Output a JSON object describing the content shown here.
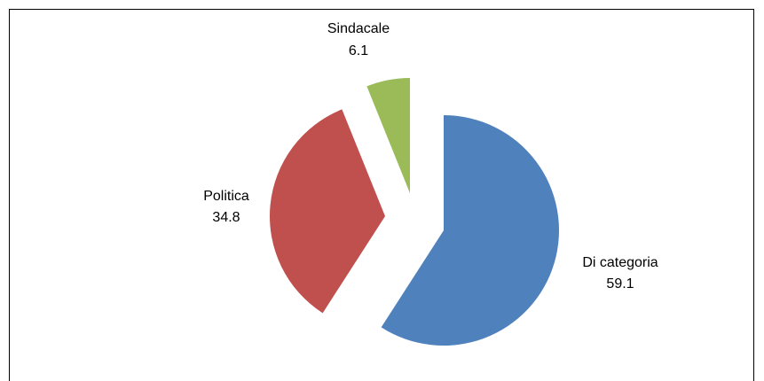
{
  "chart_data": {
    "type": "pie",
    "title": "",
    "slices": [
      {
        "label": "Di categoria",
        "value": 59.1,
        "value_label": "59.1",
        "color": "#4F81BD"
      },
      {
        "label": "Politica",
        "value": 34.8,
        "value_label": "34.8",
        "color": "#C0504D"
      },
      {
        "label": "Sindacale",
        "value": 6.1,
        "value_label": "6.1",
        "color": "#9BBB59"
      }
    ],
    "start_angle_deg": 0,
    "direction": "clockwise",
    "exploded": true,
    "legend": "none",
    "data_labels": "outside"
  }
}
